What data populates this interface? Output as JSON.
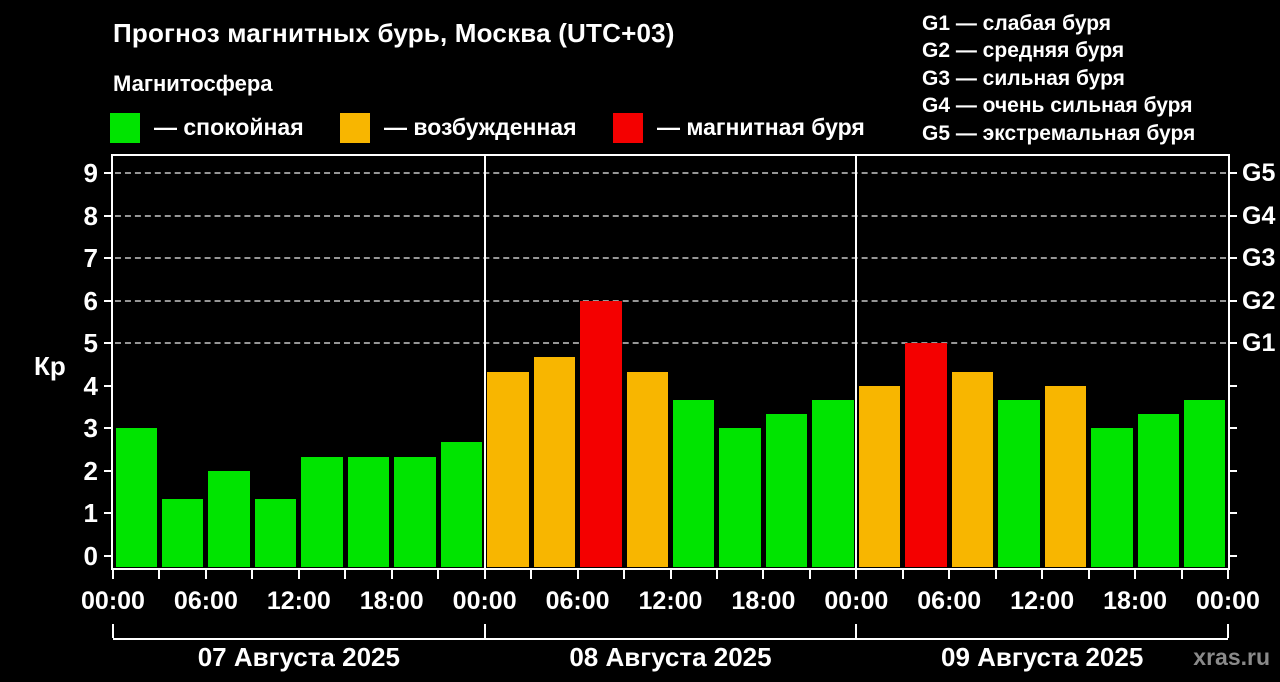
{
  "title": "Прогноз магнитных бурь, Москва (UTC+03)",
  "subtitle": "Магнитосфера",
  "watermark": "xras.ru",
  "legend": {
    "quiet_label": "— спокойная",
    "excited_label": "— возбужденная",
    "storm_label": "— магнитная буря"
  },
  "storm_scale": [
    "G1 — слабая буря",
    "G2 — средняя буря",
    "G3 — сильная буря",
    "G4 — очень сильная буря",
    "G5 — экстремальная буря"
  ],
  "colors": {
    "background": "#000000",
    "quiet": "#00E400",
    "excited": "#F8B600",
    "storm": "#F40000",
    "axis": "#FFFFFF",
    "grid": "#969696",
    "watermark": "#8A8A8A"
  },
  "chart_data": {
    "type": "bar",
    "title": "Прогноз магнитных бурь, Москва (UTC+03)",
    "ylabel": "Кр",
    "ylim": [
      0,
      9
    ],
    "yticks": [
      0,
      1,
      2,
      3,
      4,
      5,
      6,
      7,
      8,
      9
    ],
    "grid": "dashed horizontal lines at Kp 5,6,7,8,9",
    "legend_position": "top",
    "right_axis": {
      "values": [
        5,
        6,
        7,
        8,
        9
      ],
      "labels": [
        "G1",
        "G2",
        "G3",
        "G4",
        "G5"
      ]
    },
    "hours_per_bar": 3,
    "time_labels": [
      "00:00",
      "06:00",
      "12:00",
      "18:00",
      "00:00",
      "06:00",
      "12:00",
      "18:00",
      "00:00",
      "06:00",
      "12:00",
      "18:00",
      "00:00"
    ],
    "days": [
      {
        "date": "07 Августа 2025",
        "values": [
          3,
          1.33,
          2,
          1.33,
          2.33,
          2.33,
          2.33,
          2.67
        ],
        "levels": [
          "quiet",
          "quiet",
          "quiet",
          "quiet",
          "quiet",
          "quiet",
          "quiet",
          "quiet"
        ]
      },
      {
        "date": "08 Августа 2025",
        "values": [
          4.33,
          4.67,
          6,
          4.33,
          3.67,
          3,
          3.33,
          3.67
        ],
        "levels": [
          "excited",
          "excited",
          "storm",
          "excited",
          "quiet",
          "quiet",
          "quiet",
          "quiet"
        ]
      },
      {
        "date": "09 Августа 2025",
        "values": [
          4,
          5,
          4.33,
          3.67,
          4,
          3,
          3.33,
          3.67
        ],
        "levels": [
          "excited",
          "storm",
          "excited",
          "quiet",
          "excited",
          "quiet",
          "quiet",
          "quiet"
        ]
      }
    ]
  }
}
